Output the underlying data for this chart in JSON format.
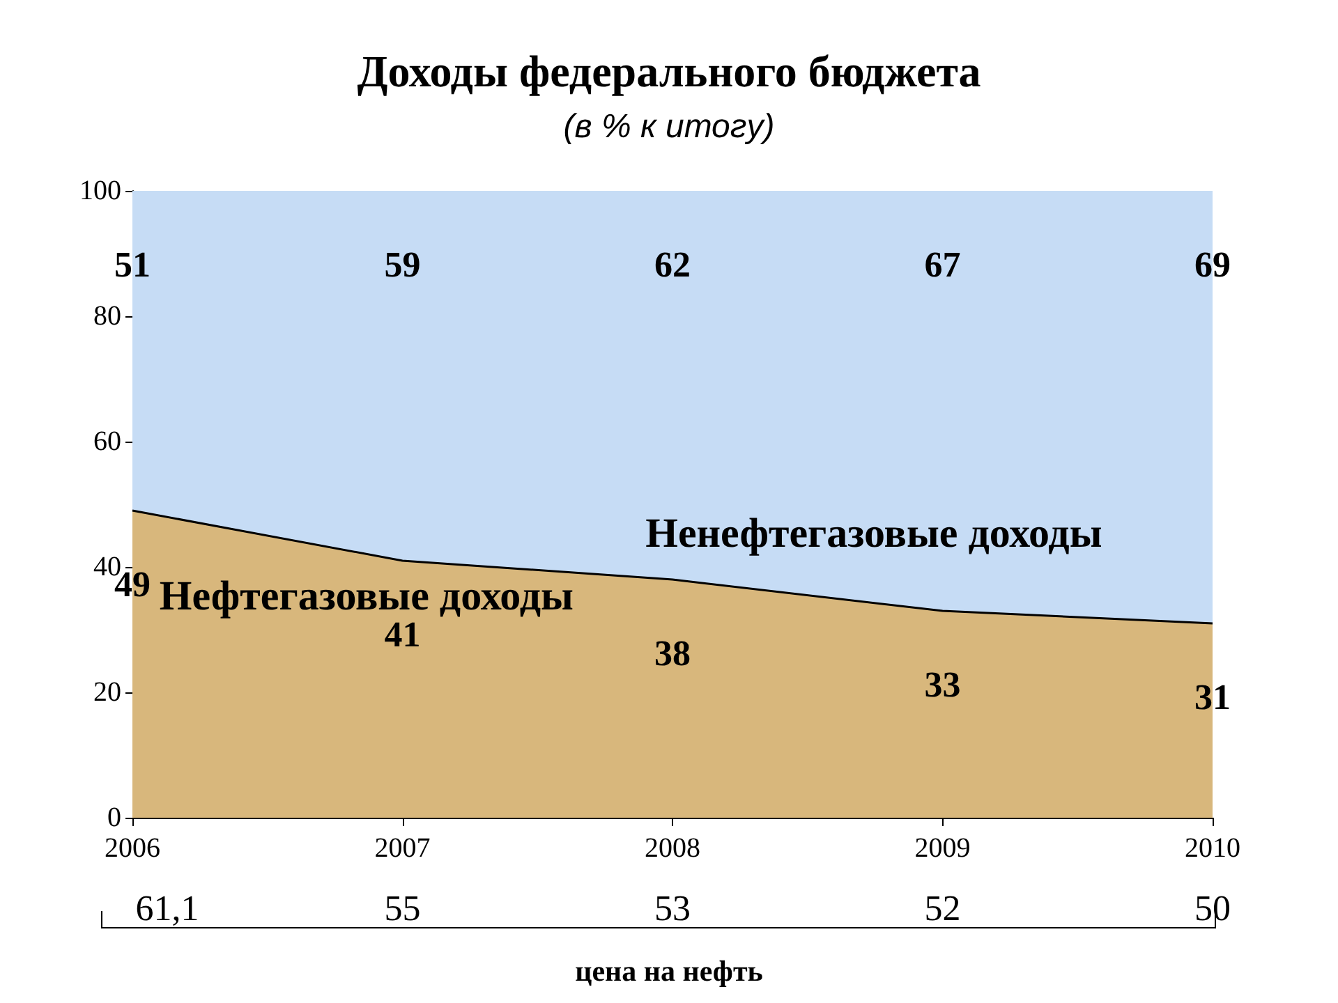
{
  "chart_data": {
    "type": "area",
    "title": "Доходы федерального бюджета",
    "subtitle": "(в % к итогу)",
    "x": [
      2006,
      2007,
      2008,
      2009,
      2010
    ],
    "xlim": [
      2006,
      2010
    ],
    "xticks": [
      2006,
      2007,
      2008,
      2009,
      2010
    ],
    "ylim": [
      0,
      100
    ],
    "yticks": [
      0,
      20,
      40,
      60,
      80,
      100
    ],
    "stacked": true,
    "grid": false,
    "legend": false,
    "marker": "none",
    "data_labels": true,
    "series": [
      {
        "name": "Нефтегазовые доходы",
        "color": "#d8b77c",
        "values": [
          49,
          41,
          38,
          33,
          31
        ]
      },
      {
        "name": "Ненефтегазовые доходы",
        "color": "#c6dcf5",
        "values": [
          51,
          59,
          62,
          67,
          69
        ]
      }
    ],
    "annotations": [
      "61,1",
      "55",
      "53",
      "52",
      "50",
      "цена на нефть"
    ]
  }
}
